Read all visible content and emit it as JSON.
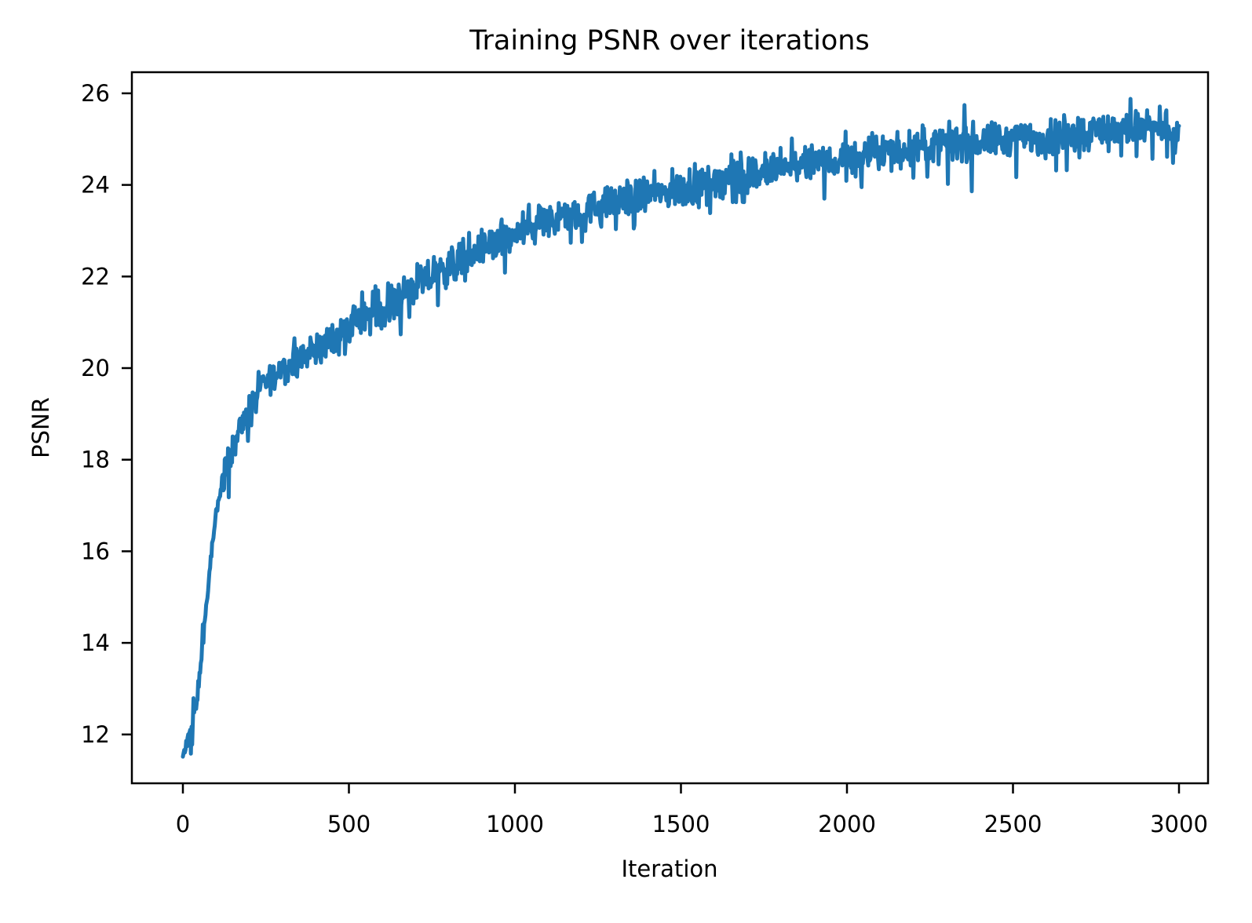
{
  "chart_data": {
    "type": "line",
    "title": "Training PSNR over iterations",
    "xlabel": "Iteration",
    "ylabel": "PSNR",
    "xlim": [
      -150,
      3150
    ],
    "ylim": [
      10.6,
      26.5
    ],
    "xticks": [
      0,
      500,
      1000,
      1500,
      2000,
      2500,
      3000
    ],
    "xtick_labels": [
      "0",
      "500",
      "1000",
      "1500",
      "2000",
      "2500",
      "3000"
    ],
    "yticks": [
      12,
      14,
      16,
      18,
      20,
      22,
      24,
      26
    ],
    "ytick_labels": [
      "12",
      "14",
      "16",
      "18",
      "20",
      "22",
      "24",
      "26"
    ],
    "grid": false,
    "legend": null,
    "series": [
      {
        "name": "PSNR",
        "color": "#1f77b4",
        "note": "trend (center of noisy band); raw curve has per-iteration noise of roughly ±0.3-0.5 dB",
        "x": [
          0,
          20,
          40,
          60,
          80,
          100,
          120,
          150,
          200,
          250,
          300,
          400,
          500,
          600,
          700,
          800,
          900,
          1000,
          1100,
          1200,
          1300,
          1400,
          1500,
          1600,
          1700,
          1800,
          1900,
          2000,
          2100,
          2200,
          2300,
          2400,
          2500,
          2600,
          2700,
          2800,
          2900,
          3000
        ],
        "values": [
          11.5,
          12.0,
          12.6,
          14.0,
          15.5,
          16.8,
          17.6,
          18.3,
          19.1,
          19.7,
          20.0,
          20.4,
          20.9,
          21.3,
          21.8,
          22.2,
          22.6,
          22.9,
          23.2,
          23.4,
          23.6,
          23.8,
          23.9,
          24.1,
          24.2,
          24.35,
          24.45,
          24.55,
          24.7,
          24.8,
          24.9,
          24.95,
          25.0,
          25.05,
          25.15,
          25.2,
          25.25,
          25.1
        ]
      }
    ]
  }
}
